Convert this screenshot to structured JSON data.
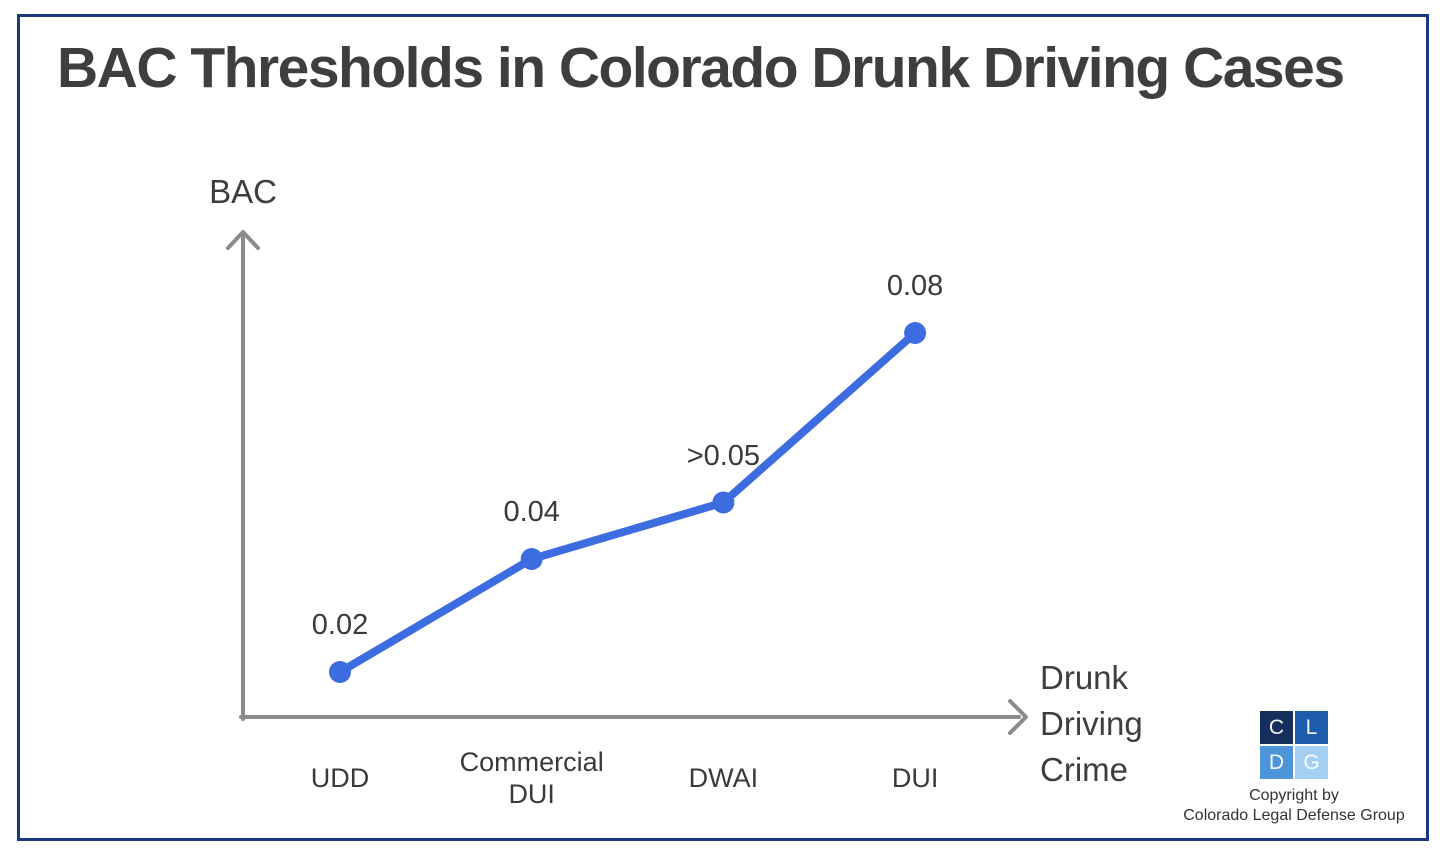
{
  "page": {
    "border_color": "#17397f",
    "background_color": "#ffffff"
  },
  "chart_data": {
    "type": "line",
    "title": "BAC Thresholds in Colorado Drunk Driving Cases",
    "categories": [
      "UDD",
      "Commercial DUI",
      "DWAI",
      "DUI"
    ],
    "values": [
      0.02,
      0.04,
      0.05,
      0.08
    ],
    "point_labels": [
      "0.02",
      "0.04",
      ">0.05",
      "0.08"
    ],
    "xlabel": "Drunk Driving Crime",
    "ylabel": "BAC",
    "ylim": [
      0,
      0.1
    ],
    "grid": false,
    "legend_position": "none",
    "line_color": "#3d6ce0",
    "marker_color": "#3d6ce0",
    "axis_color": "#8b8b8b",
    "label_color": "#3a3a3a",
    "title_color": "#3e3e3e"
  },
  "axes": {
    "y_label": "BAC",
    "x_label_lines": [
      "Drunk",
      "Driving",
      "Crime"
    ]
  },
  "footer": {
    "logo_letters": [
      "C",
      "L",
      "D",
      "G"
    ],
    "logo_colors": [
      "#16305e",
      "#1d5cad",
      "#4d94d8",
      "#a3d0f2"
    ],
    "copyright_line1": "Copyright by",
    "copyright_line2": "Colorado Legal Defense Group"
  }
}
